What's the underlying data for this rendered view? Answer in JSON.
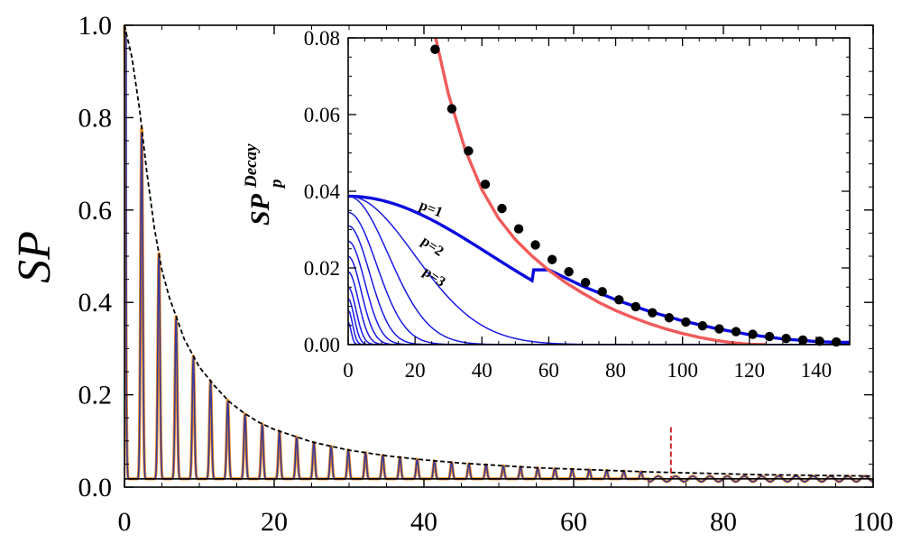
{
  "chart_data": [
    {
      "id": "main",
      "type": "line",
      "ylabel": "SP",
      "xlabel": "",
      "xlim": [
        0,
        100
      ],
      "ylim": [
        0,
        1.0
      ],
      "x_ticks": [
        "0",
        "20",
        "40",
        "60",
        "80",
        "100"
      ],
      "x_tick_values": [
        0,
        20,
        40,
        60,
        80,
        100
      ],
      "y_ticks": [
        "0.0",
        "0.2",
        "0.4",
        "0.6",
        "0.8",
        "1.0"
      ],
      "y_tick_values": [
        0,
        0.2,
        0.4,
        0.6,
        0.8,
        1.0
      ],
      "oscillation_period": 2.3,
      "envelope": {
        "name": "dashed envelope",
        "style": "dashed",
        "color": "#000000",
        "points": [
          [
            0,
            1.0
          ],
          [
            1,
            0.93
          ],
          [
            2,
            0.82
          ],
          [
            3,
            0.68
          ],
          [
            4,
            0.56
          ],
          [
            5,
            0.47
          ],
          [
            6,
            0.41
          ],
          [
            8,
            0.32
          ],
          [
            10,
            0.26
          ],
          [
            12,
            0.22
          ],
          [
            14,
            0.185
          ],
          [
            16,
            0.16
          ],
          [
            18,
            0.14
          ],
          [
            20,
            0.125
          ],
          [
            25,
            0.098
          ],
          [
            30,
            0.08
          ],
          [
            35,
            0.068
          ],
          [
            40,
            0.059
          ],
          [
            45,
            0.052
          ],
          [
            50,
            0.047
          ],
          [
            55,
            0.042
          ],
          [
            60,
            0.039
          ],
          [
            65,
            0.036
          ],
          [
            70,
            0.033
          ],
          [
            75,
            0.031
          ],
          [
            80,
            0.029
          ],
          [
            85,
            0.027
          ],
          [
            90,
            0.026
          ],
          [
            95,
            0.025
          ],
          [
            100,
            0.024
          ]
        ]
      },
      "baseline": {
        "name": "horizontal level",
        "y": 0.018,
        "color": "#000000"
      },
      "marker_line": {
        "name": "red dashed marker",
        "x": 73,
        "y_top": 0.13,
        "color": "#cc0000"
      },
      "series": [
        {
          "name": "numerical SP",
          "color": "#f08a1c"
        },
        {
          "name": "analytic SP",
          "color": "#3a3a9a"
        }
      ]
    },
    {
      "id": "inset",
      "type": "line",
      "ylabel": "SP",
      "ylabel_sup": "Decay",
      "ylabel_sub": "p",
      "xlim": [
        0,
        150
      ],
      "ylim": [
        0,
        0.08
      ],
      "x_ticks": [
        "0",
        "20",
        "40",
        "60",
        "80",
        "100",
        "120",
        "140"
      ],
      "x_tick_values": [
        0,
        20,
        40,
        60,
        80,
        100,
        120,
        140
      ],
      "y_ticks": [
        "0.00",
        "0.02",
        "0.04",
        "0.06",
        "0.08"
      ],
      "y_tick_values": [
        0,
        0.02,
        0.04,
        0.06,
        0.08
      ],
      "fit_curve": {
        "name": "red fit",
        "color": "#f05a5a",
        "points": [
          [
            26,
            0.0806
          ],
          [
            30,
            0.0653
          ],
          [
            35,
            0.0508
          ],
          [
            40,
            0.0404
          ],
          [
            45,
            0.0329
          ],
          [
            50,
            0.0274
          ],
          [
            55,
            0.0231
          ],
          [
            60,
            0.0194
          ],
          [
            65,
            0.0162
          ],
          [
            70,
            0.0135
          ],
          [
            75,
            0.011
          ],
          [
            80,
            0.0089
          ],
          [
            85,
            0.0071
          ],
          [
            90,
            0.0055
          ],
          [
            95,
            0.0041
          ],
          [
            100,
            0.0029
          ],
          [
            105,
            0.0019
          ],
          [
            110,
            0.0011
          ],
          [
            115,
            0.0005
          ],
          [
            120,
            0.0001
          ],
          [
            125,
            0
          ]
        ]
      },
      "dots": {
        "name": "data points",
        "color": "#000000",
        "points": [
          [
            26,
            0.077
          ],
          [
            31,
            0.0615
          ],
          [
            36,
            0.0505
          ],
          [
            41,
            0.0418
          ],
          [
            46,
            0.0355
          ],
          [
            51,
            0.0302
          ],
          [
            56,
            0.026
          ],
          [
            61,
            0.0222
          ],
          [
            66,
            0.019
          ],
          [
            71,
            0.0162
          ],
          [
            76,
            0.0138
          ],
          [
            81,
            0.0117
          ],
          [
            86,
            0.0099
          ],
          [
            91,
            0.0083
          ],
          [
            96,
            0.007
          ],
          [
            101,
            0.0059
          ],
          [
            106,
            0.0049
          ],
          [
            111,
            0.0041
          ],
          [
            116,
            0.0034
          ],
          [
            121,
            0.0027
          ],
          [
            126,
            0.0021
          ],
          [
            131,
            0.0016
          ],
          [
            136,
            0.0012
          ],
          [
            141,
            0.0009
          ],
          [
            146,
            0.0007
          ]
        ]
      },
      "families": [
        {
          "label": "p=1",
          "amp": 0.0387,
          "width": 60,
          "emphasis": true
        },
        {
          "label": "p=2",
          "amp": 0.0387,
          "width": 28,
          "emphasis": false
        },
        {
          "label": "p=3",
          "amp": 0.0387,
          "width": 17,
          "emphasis": false
        },
        {
          "label": "",
          "amp": 0.0345,
          "width": 12,
          "emphasis": false
        },
        {
          "label": "",
          "amp": 0.031,
          "width": 9,
          "emphasis": false
        },
        {
          "label": "",
          "amp": 0.027,
          "width": 7,
          "emphasis": false
        },
        {
          "label": "",
          "amp": 0.023,
          "width": 5.5,
          "emphasis": false
        },
        {
          "label": "",
          "amp": 0.019,
          "width": 4.3,
          "emphasis": false
        },
        {
          "label": "",
          "amp": 0.015,
          "width": 3.3,
          "emphasis": false
        },
        {
          "label": "",
          "amp": 0.012,
          "width": 2.5,
          "emphasis": false
        },
        {
          "label": "",
          "amp": 0.009,
          "width": 1.8,
          "emphasis": false
        },
        {
          "label": "",
          "amp": 0.006,
          "width": 1.2,
          "emphasis": false
        }
      ],
      "tail": {
        "name": "p=1 tail",
        "points": [
          [
            60,
            0.0195
          ],
          [
            70,
            0.0153
          ],
          [
            80,
            0.0117
          ],
          [
            90,
            0.0087
          ],
          [
            100,
            0.0062
          ],
          [
            110,
            0.0042
          ],
          [
            120,
            0.0026
          ],
          [
            130,
            0.0015
          ],
          [
            140,
            0.0008
          ],
          [
            146,
            0.0006
          ]
        ]
      },
      "curve_colors": {
        "family": "#1a1ae6",
        "emphasis": "#0a0ae0"
      }
    }
  ]
}
